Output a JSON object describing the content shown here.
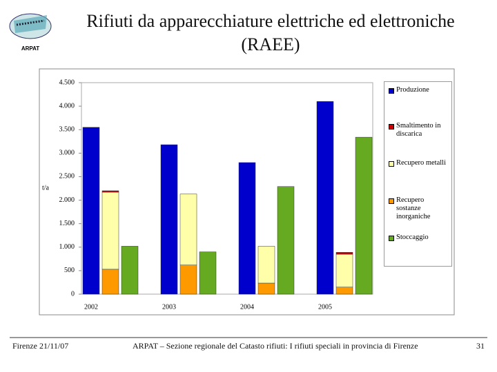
{
  "header": {
    "title": "Rifiuti da apparecchiature elettriche ed elettroniche (RAEE)",
    "logo": "ARPAT"
  },
  "chart_data": {
    "type": "bar",
    "y_label": "t/a",
    "categories": [
      "2002",
      "2003",
      "2004",
      "2005"
    ],
    "series": [
      {
        "name": "Produzione",
        "color": "#0000cc",
        "values": [
          3550,
          3180,
          2800,
          4100
        ]
      },
      {
        "name": "Smaltimento in discarica",
        "color": "#cc0000",
        "values": [
          30,
          0,
          0,
          40
        ]
      },
      {
        "name": "Recupero metalli",
        "color": "#ffffaa",
        "values": [
          1640,
          1510,
          785,
          700
        ]
      },
      {
        "name": "Recupero sostanze inorganiche",
        "color": "#ff9900",
        "values": [
          530,
          620,
          235,
          150
        ]
      },
      {
        "name": "Stoccaggio",
        "color": "#66aa22",
        "values": [
          1020,
          900,
          2290,
          3340
        ]
      }
    ],
    "ylim": [
      0,
      4500
    ],
    "yticks": [
      0,
      500,
      {
        "value": 1000,
        "label": "1.000"
      },
      {
        "value": 1500,
        "label": "1.500"
      },
      {
        "value": 2000,
        "label": "2.000"
      },
      {
        "value": 2500,
        "label": "2.500"
      },
      {
        "value": 3000,
        "label": "3.000"
      },
      {
        "value": 3500,
        "label": "3.500"
      },
      {
        "value": 4000,
        "label": "4.000"
      },
      {
        "value": 4500,
        "label": "4.500"
      }
    ],
    "grid": false
  },
  "footer": {
    "date": "Firenze 21/11/07",
    "text": "ARPAT – Sezione regionale del Catasto rifiuti: I rifiuti speciali in provincia di Firenze",
    "page": "31"
  }
}
